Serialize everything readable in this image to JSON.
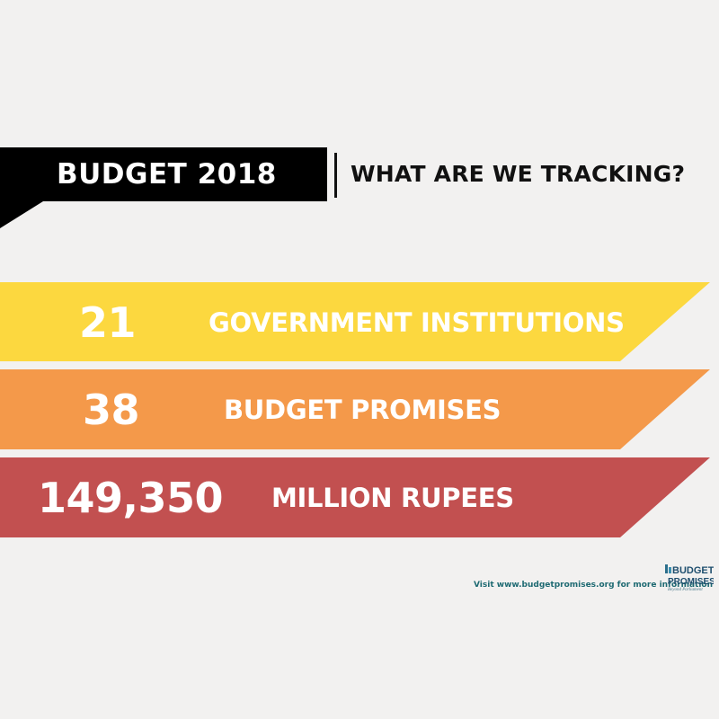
{
  "header": {
    "title": "BUDGET 2018",
    "subtitle": "WHAT ARE WE TRACKING?"
  },
  "banners": [
    {
      "number": "21",
      "label": "GOVERNMENT INSTITUTIONS",
      "color": "#fcd83f"
    },
    {
      "number": "38",
      "label": "BUDGET PROMISES",
      "color": "#f4994a"
    },
    {
      "number": "149,350",
      "label": "MILLION RUPEES",
      "color": "#c25050"
    }
  ],
  "footer": {
    "text": "Visit www.budgetpromises.org for more information"
  },
  "logo": {
    "line1": "BUDGET",
    "line2": "PROMISES",
    "tagline": "Beyond Parliament"
  },
  "colors": {
    "background": "#f2f1f0",
    "header_block": "#000000",
    "footer_text": "#1e6a72"
  }
}
